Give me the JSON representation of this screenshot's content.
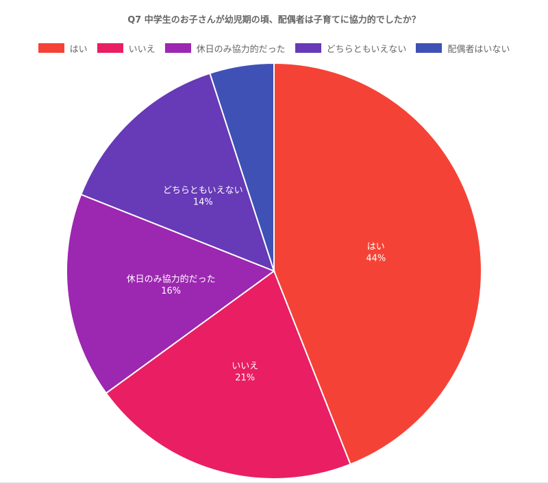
{
  "chart_data": {
    "type": "pie",
    "title": "Q7 中学生のお子さんが幼児期の頃、配偶者は子育てに協力的でしたか？",
    "legend_position": "top",
    "categories": [
      "はい",
      "いいえ",
      "休日のみ協力的だった",
      "どちらともいえない",
      "配偶者はいない"
    ],
    "values": [
      44,
      21,
      16,
      14,
      5
    ],
    "labels": [
      "44%",
      "21%",
      "16%",
      "14%",
      ""
    ],
    "colors": [
      "#f44336",
      "#e91e63",
      "#9c27b0",
      "#673ab7",
      "#3f51b5"
    ]
  }
}
